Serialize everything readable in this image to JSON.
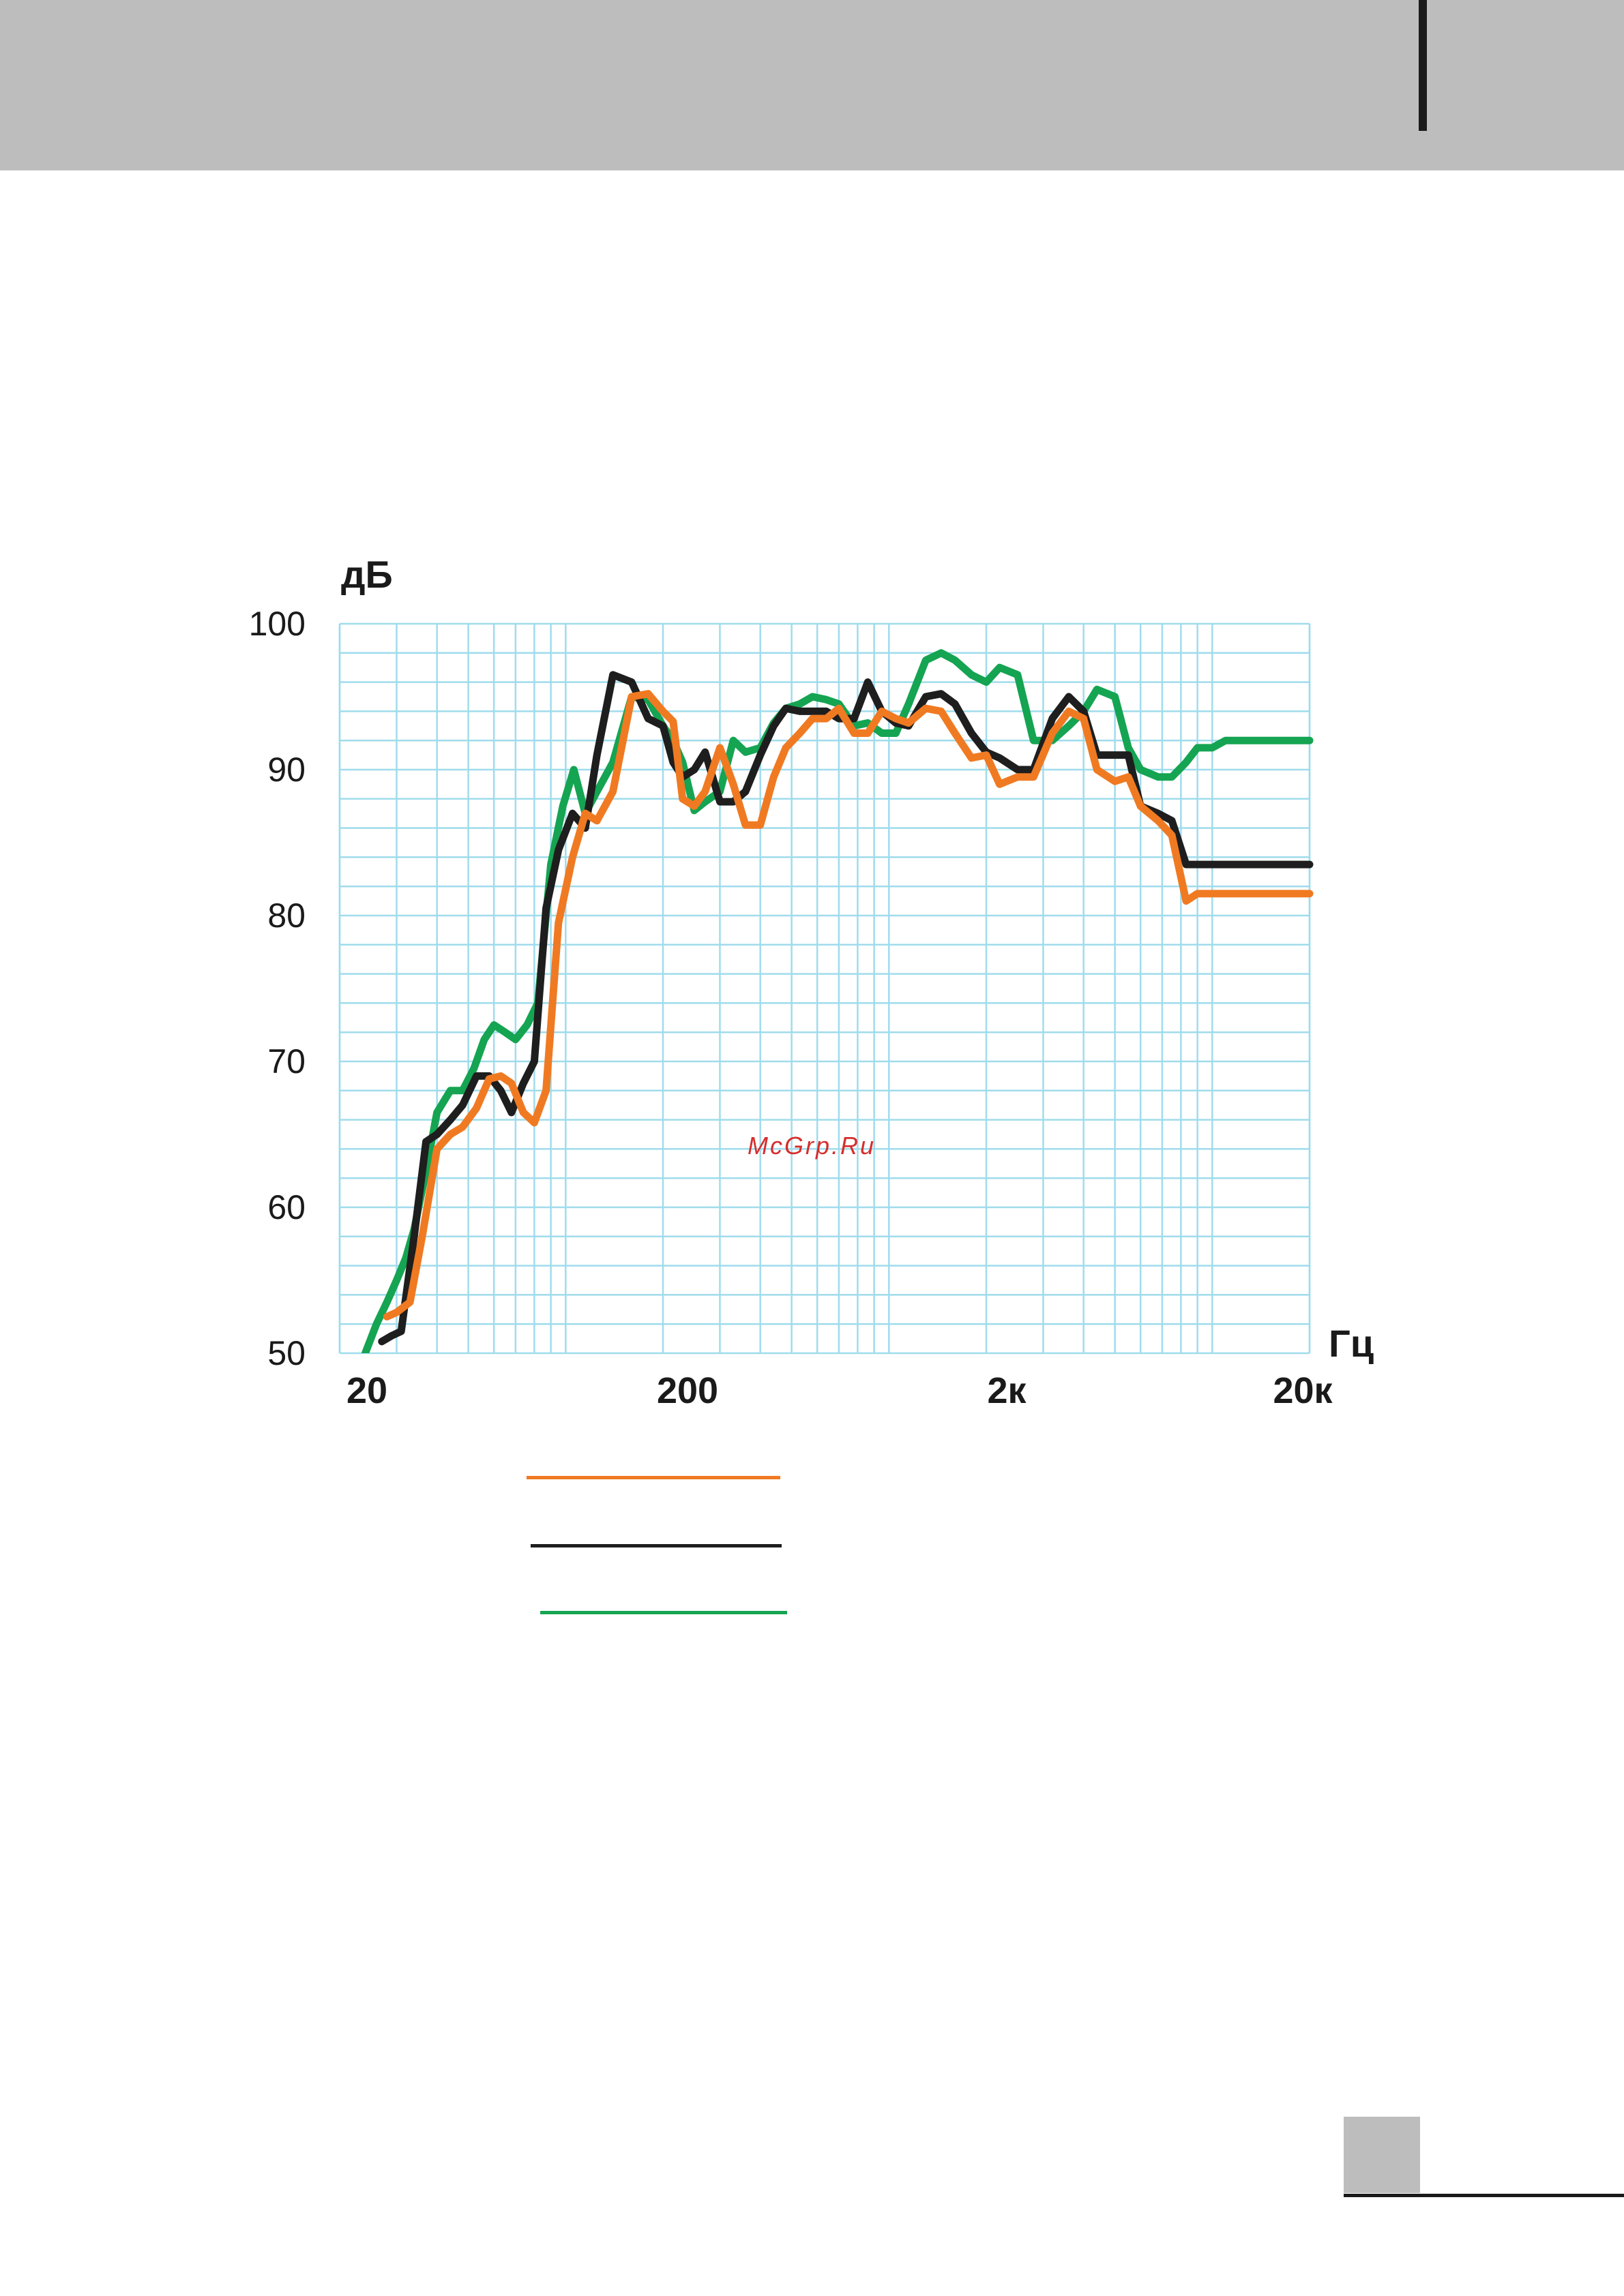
{
  "colors": {
    "header": "#bdbdbd",
    "grid": "#9fdcec",
    "orange": "#f07a22",
    "black": "#1e1e1e",
    "green": "#15a452",
    "watermark": "#d42e2e"
  },
  "watermark": "McGrp.Ru",
  "chart_data": {
    "type": "line",
    "title": "",
    "xlabel": "Гц",
    "ylabel": "дБ",
    "x_scale": "log",
    "xlim": [
      20,
      20000
    ],
    "ylim": [
      50,
      100
    ],
    "x_ticks": [
      {
        "value": 20,
        "label": "20"
      },
      {
        "value": 200,
        "label": "200"
      },
      {
        "value": 2000,
        "label": "2к"
      },
      {
        "value": 20000,
        "label": "20к"
      }
    ],
    "y_ticks": [
      {
        "value": 50,
        "label": "50"
      },
      {
        "value": 60,
        "label": "60"
      },
      {
        "value": 70,
        "label": "70"
      },
      {
        "value": 80,
        "label": "80"
      },
      {
        "value": 90,
        "label": "90"
      },
      {
        "value": 100,
        "label": "100"
      }
    ],
    "grid": true,
    "legend": "bottom",
    "series": [
      {
        "color": "orange",
        "x": [
          28,
          30,
          33,
          36,
          40,
          44,
          48,
          53,
          58,
          63,
          68,
          74,
          80,
          87,
          95,
          105,
          115,
          125,
          140,
          160,
          180,
          200,
          215,
          230,
          250,
          270,
          300,
          330,
          360,
          400,
          440,
          480,
          530,
          580,
          640,
          700,
          780,
          860,
          950,
          1050,
          1150,
          1300,
          1450,
          1600,
          1800,
          2000,
          2200,
          2500,
          2800,
          3200,
          3600,
          4000,
          4400,
          5000,
          5500,
          6000,
          6800,
          7500,
          8300,
          9000,
          10000,
          11000,
          12500,
          14000,
          16000,
          18000,
          19000,
          20000
        ],
        "y": [
          52.5,
          52.8,
          53.5,
          58,
          64,
          65,
          65.5,
          66.8,
          68.8,
          69,
          68.5,
          66.5,
          65.8,
          68,
          79.5,
          84,
          87,
          86.5,
          88.5,
          95,
          95.2,
          94,
          93.3,
          88,
          87.5,
          88.5,
          91.5,
          89,
          86.2,
          86.2,
          89.5,
          91.5,
          92.5,
          93.5,
          93.5,
          94.2,
          92.5,
          92.5,
          94,
          93.5,
          93.2,
          94.2,
          94,
          92.5,
          90.8,
          91,
          89,
          89.5,
          89.5,
          92.5,
          94,
          93.5,
          90,
          89.2,
          89.5,
          87.5,
          86.5,
          85.5,
          81,
          81.5,
          81.5,
          81.5,
          81.5,
          81.5,
          81.5,
          81.5,
          81.5,
          81.5
        ]
      },
      {
        "color": "black",
        "x": [
          27,
          29,
          31,
          34,
          37,
          40,
          44,
          48,
          53,
          58,
          63,
          68,
          74,
          80,
          87,
          95,
          105,
          115,
          125,
          140,
          160,
          180,
          200,
          215,
          230,
          250,
          270,
          300,
          330,
          360,
          400,
          440,
          480,
          530,
          580,
          640,
          700,
          780,
          860,
          950,
          1050,
          1150,
          1300,
          1450,
          1600,
          1800,
          2000,
          2200,
          2500,
          2800,
          3200,
          3600,
          4000,
          4400,
          5000,
          5500,
          6000,
          6800,
          7500,
          8300,
          9000,
          10000,
          11000,
          12500,
          14000,
          16000,
          18000,
          20000
        ],
        "y": [
          50.8,
          51.2,
          51.5,
          58,
          64.5,
          65,
          66,
          67,
          69,
          69,
          68,
          66.5,
          68.5,
          70,
          80.5,
          84.5,
          87,
          86,
          91,
          96.5,
          96,
          93.5,
          93,
          90.5,
          89.5,
          90,
          91.2,
          87.8,
          87.8,
          88.5,
          91,
          93,
          94.2,
          94,
          94,
          94,
          93.5,
          93.5,
          96,
          94,
          93.2,
          93,
          95,
          95.2,
          94.5,
          92.5,
          91.2,
          90.8,
          90,
          90,
          93.5,
          95,
          94,
          91,
          91,
          91,
          87.5,
          87,
          86.5,
          83.5,
          83.5,
          83.5,
          83.5,
          83.5,
          83.5,
          83.5,
          83.5,
          83.5
        ]
      },
      {
        "color": "green",
        "x": [
          24,
          26,
          28,
          30,
          32,
          34,
          37,
          40,
          44,
          48,
          52,
          56,
          60,
          65,
          70,
          76,
          82,
          90,
          98,
          106,
          115,
          125,
          140,
          160,
          180,
          200,
          215,
          230,
          250,
          270,
          300,
          330,
          360,
          400,
          440,
          480,
          530,
          580,
          640,
          700,
          780,
          860,
          950,
          1050,
          1150,
          1300,
          1450,
          1600,
          1800,
          2000,
          2200,
          2500,
          2800,
          3200,
          3600,
          4000,
          4400,
          5000,
          5500,
          6000,
          6800,
          7500,
          8300,
          9000,
          10000,
          11000,
          12500,
          14000,
          16000,
          18000,
          20000
        ],
        "y": [
          50,
          52,
          53.5,
          55,
          56.5,
          58.5,
          62.5,
          66.5,
          68,
          68,
          69.5,
          71.5,
          72.5,
          72,
          71.5,
          72.5,
          74,
          83.5,
          87.5,
          90,
          87,
          88.5,
          90.5,
          95,
          94.8,
          93,
          92,
          90.5,
          87.2,
          87.8,
          88.5,
          92,
          91.2,
          91.5,
          93.2,
          94.2,
          94.5,
          95,
          94.8,
          94.5,
          93,
          93.2,
          92.5,
          92.5,
          94.5,
          97.5,
          98,
          97.5,
          96.5,
          96,
          97,
          96.5,
          92,
          92,
          93,
          94,
          95.5,
          95,
          91.5,
          90,
          89.5,
          89.5,
          90.5,
          91.5,
          91.5,
          92,
          92,
          92,
          92,
          92,
          92
        ]
      }
    ]
  }
}
